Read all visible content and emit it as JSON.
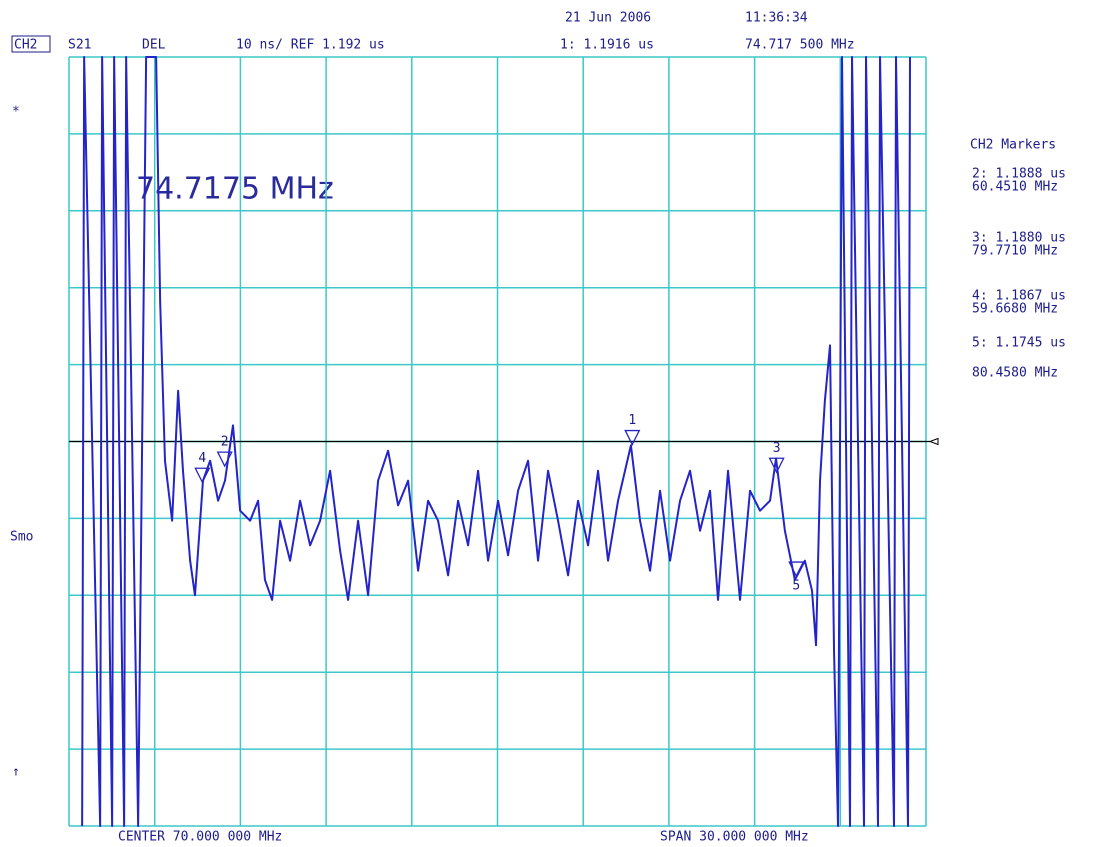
{
  "chart_data": {
    "type": "line",
    "date": "21 Jun 2006",
    "time": "11:36:34",
    "channel": "CH2",
    "parameter": "S21",
    "format": "DEL",
    "ref_line": {
      "value": 1.192,
      "label": "10 ns/ REF 1.192 us"
    },
    "center_label": "CENTER 70.000 000 MHz",
    "span_label": "SPAN 30.000 000 MHz",
    "left_labels": [
      "*",
      "Smo",
      "↑"
    ],
    "active_marker_label": "74.7175 MHz",
    "markers_title": "CH2 Markers",
    "color": "#2424c8",
    "grid": true,
    "grid_color": "#3cc8c8",
    "xlim": [
      55,
      85
    ],
    "xticks": [
      55,
      58,
      61,
      64,
      67,
      70,
      73,
      76,
      79,
      82,
      85
    ],
    "ylim": [
      1.142,
      1.242
    ],
    "yticks": [
      1.142,
      1.152,
      1.162,
      1.172,
      1.182,
      1.192,
      1.202,
      1.212,
      1.222,
      1.232,
      1.242
    ],
    "x": [
      55.46,
      55.53,
      56.09,
      56.16,
      56.51,
      56.58,
      56.93,
      57.0,
      57.42,
      57.7,
      58.05,
      58.19,
      58.36,
      58.61,
      58.82,
      58.99,
      59.24,
      59.41,
      59.69,
      59.94,
      60.22,
      60.46,
      60.74,
      60.99,
      61.34,
      61.62,
      61.86,
      62.11,
      62.39,
      62.74,
      63.09,
      63.44,
      63.79,
      64.14,
      64.49,
      64.77,
      65.12,
      65.47,
      65.82,
      66.17,
      66.52,
      66.87,
      67.22,
      67.57,
      67.92,
      68.27,
      68.62,
      68.97,
      69.32,
      69.67,
      70.02,
      70.37,
      70.72,
      71.07,
      71.42,
      71.77,
      72.12,
      72.47,
      72.82,
      73.17,
      73.52,
      73.87,
      74.22,
      74.67,
      74.99,
      75.34,
      75.69,
      76.04,
      76.39,
      76.74,
      77.09,
      77.44,
      77.72,
      78.07,
      78.49,
      78.84,
      79.19,
      79.54,
      79.75,
      80.06,
      80.41,
      80.76,
      81.01,
      81.15,
      81.29,
      81.46,
      81.64,
      81.78,
      81.92,
      82.06,
      82.34,
      82.41,
      82.83,
      82.9,
      83.32,
      83.39,
      83.88,
      83.95,
      84.37,
      84.44
    ],
    "values": [
      1.142,
      1.242,
      1.142,
      1.242,
      1.142,
      1.242,
      1.142,
      1.242,
      1.142,
      1.242,
      1.242,
      1.2103,
      1.1895,
      1.1817,
      1.1986,
      1.1882,
      1.1765,
      1.172,
      1.1869,
      1.1895,
      1.1843,
      1.1869,
      1.1941,
      1.183,
      1.1817,
      1.1843,
      1.174,
      1.1714,
      1.1817,
      1.1765,
      1.1843,
      1.1785,
      1.1817,
      1.1882,
      1.1778,
      1.1714,
      1.1817,
      1.172,
      1.1869,
      1.1908,
      1.1837,
      1.1869,
      1.1752,
      1.1843,
      1.1817,
      1.1746,
      1.1843,
      1.1785,
      1.1882,
      1.1765,
      1.1843,
      1.1772,
      1.1856,
      1.1895,
      1.1765,
      1.1882,
      1.1817,
      1.1746,
      1.1843,
      1.1785,
      1.1882,
      1.1765,
      1.1843,
      1.1915,
      1.1817,
      1.1752,
      1.1856,
      1.1765,
      1.1843,
      1.1882,
      1.1804,
      1.1856,
      1.1714,
      1.1882,
      1.1714,
      1.1856,
      1.183,
      1.1843,
      1.1898,
      1.1804,
      1.174,
      1.1765,
      1.1726,
      1.1655,
      1.1869,
      1.1973,
      1.2045,
      1.1649,
      1.142,
      1.242,
      1.142,
      1.242,
      1.142,
      1.242,
      1.142,
      1.242,
      1.142,
      1.242,
      1.142,
      1.242
    ],
    "markers": {
      "labels": [
        "1",
        "2",
        "3",
        "4",
        "5"
      ],
      "x": [
        74.7175,
        60.451,
        79.771,
        59.668,
        80.458
      ],
      "y": [
        1.1916,
        1.1888,
        1.188,
        1.1867,
        1.1745
      ],
      "y_labels": [
        "1: 1.1916 us",
        "2: 1.1888 us",
        "3: 1.1880 us",
        "4: 1.1867 us",
        "5: 1.1745 us"
      ],
      "x_labels": [
        "74.717 500 MHz",
        "60.4510 MHz",
        "79.7710 MHz",
        "59.6680 MHz",
        "80.4580 MHz"
      ]
    }
  }
}
